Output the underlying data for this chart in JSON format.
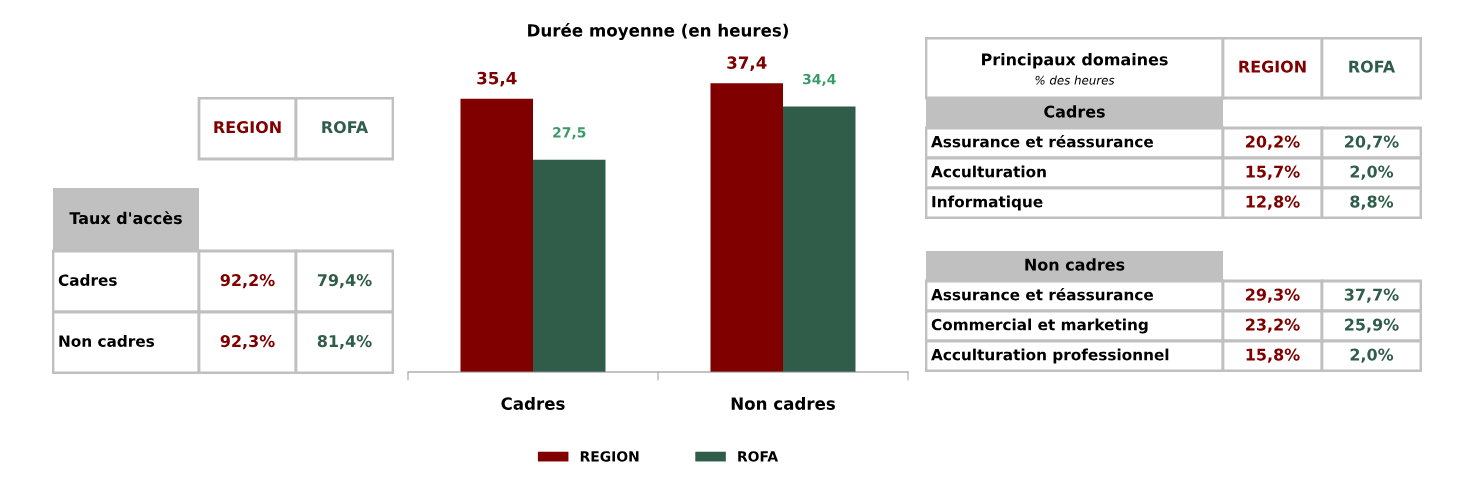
{
  "chart_data": [
    {
      "type": "other",
      "y_categories": [
        "Taux d'accès",
        "Cadres",
        "Non cadres"
      ],
      "series": [
        {
          "name": "REGION",
          "color": "#800000"
        },
        {
          "name": "ROFA",
          "color": "#2f5d4a"
        }
      ],
      "cell_labels": [
        [
          null,
          null
        ],
        [
          "92,2%",
          "79,4%"
        ],
        [
          "92,3%",
          "81,4%"
        ]
      ]
    },
    {
      "type": "bar",
      "title": "Durée moyenne (en heures)",
      "categories": [
        "Cadres",
        "Non cadres"
      ],
      "series": [
        {
          "name": "REGION",
          "color": "#800000",
          "values": [
            35.4,
            37.4
          ],
          "value_labels": [
            "35,4",
            "37,4"
          ]
        },
        {
          "name": "ROFA",
          "color": "#2f5d4a",
          "values": [
            27.5,
            34.4
          ],
          "value_labels": [
            "27,5",
            "34,4"
          ]
        }
      ],
      "legend": "bottom",
      "grid": false
    },
    {
      "type": "other",
      "title": "Principaux domaines",
      "subtitle": "% des heures",
      "y_categories": [
        "Cadres",
        "Assurance et réassurance",
        "Acculturation",
        "Informatique"
      ],
      "series": [
        {
          "name": "REGION",
          "color": "#800000"
        },
        {
          "name": "ROFA",
          "color": "#2f5d4a"
        }
      ],
      "cell_labels": [
        [
          null,
          null
        ],
        [
          "20,2%",
          "20,7%"
        ],
        [
          "15,7%",
          "2,0%"
        ],
        [
          "12,8%",
          "8,8%"
        ]
      ]
    },
    {
      "type": "other",
      "y_categories": [
        "Non cadres",
        "Assurance et réassurance",
        "Commercial et marketing",
        "Acculturation professionnel"
      ],
      "series": [
        {
          "color": "#800000"
        },
        {
          "color": "#2f5d4a"
        }
      ],
      "cell_labels": [
        [
          null,
          null
        ],
        [
          "29,3%",
          "37,7%"
        ],
        [
          "23,2%",
          "25,9%"
        ],
        [
          "15,8%",
          "2,0%"
        ]
      ]
    }
  ]
}
